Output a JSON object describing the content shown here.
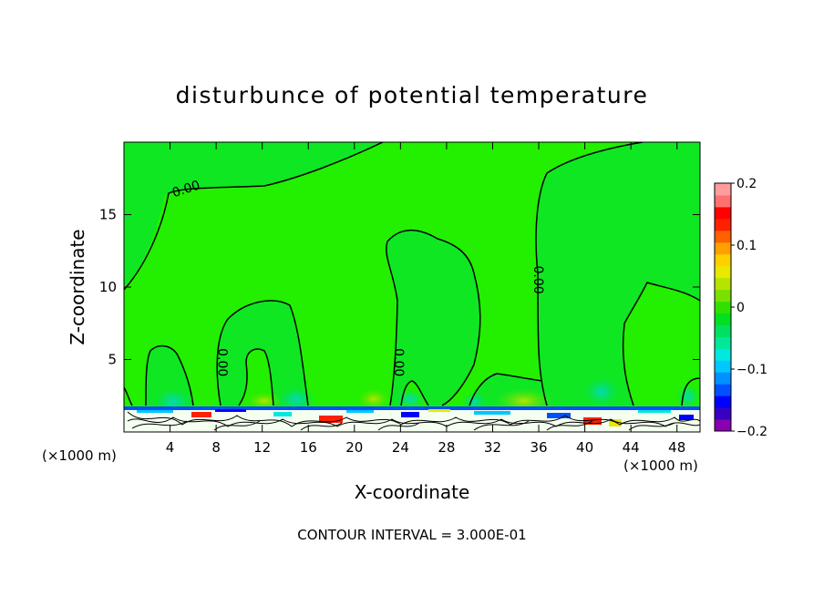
{
  "chart_data": {
    "type": "heatmap",
    "title": "disturbunce of potential temperature",
    "xlabel": "X-coordinate",
    "ylabel": "Z-coordinate",
    "x_unit_left": "(×1000 m)",
    "x_unit_right": "(×1000 m)",
    "xlim": [
      0,
      50
    ],
    "ylim": [
      0,
      20
    ],
    "x_ticks": [
      4,
      8,
      12,
      16,
      20,
      24,
      28,
      32,
      36,
      40,
      44,
      48
    ],
    "y_ticks": [
      5,
      10,
      15
    ],
    "contour_labels": [
      {
        "text": "0.00",
        "x": 5.5,
        "y": 16.5
      },
      {
        "text": "0.00",
        "x": 8.2,
        "y": 4.8
      },
      {
        "text": "0.00",
        "x": 23.5,
        "y": 4.8
      },
      {
        "text": "0.00",
        "x": 35.6,
        "y": 10.5
      }
    ],
    "colorbar": {
      "range": [
        -0.2,
        0.2
      ],
      "tick_labels": [
        "0.2",
        "0.1",
        "0",
        "−0.1",
        "−0.2"
      ],
      "tick_values": [
        0.2,
        0.1,
        0,
        -0.1,
        -0.2
      ],
      "colors": [
        "#8a00b0",
        "#3a00c0",
        "#0000ff",
        "#0050ff",
        "#0090ff",
        "#00c8ff",
        "#00e8e0",
        "#00e898",
        "#00e060",
        "#00e020",
        "#30e000",
        "#7ae000",
        "#b4e400",
        "#e8e800",
        "#ffd000",
        "#ffa000",
        "#ff6000",
        "#ff2000",
        "#ff0000",
        "#ff7070",
        "#ff9c9c"
      ]
    },
    "footer": "CONTOUR INTERVAL = 3.000E-01",
    "background_color": "#22f000"
  }
}
